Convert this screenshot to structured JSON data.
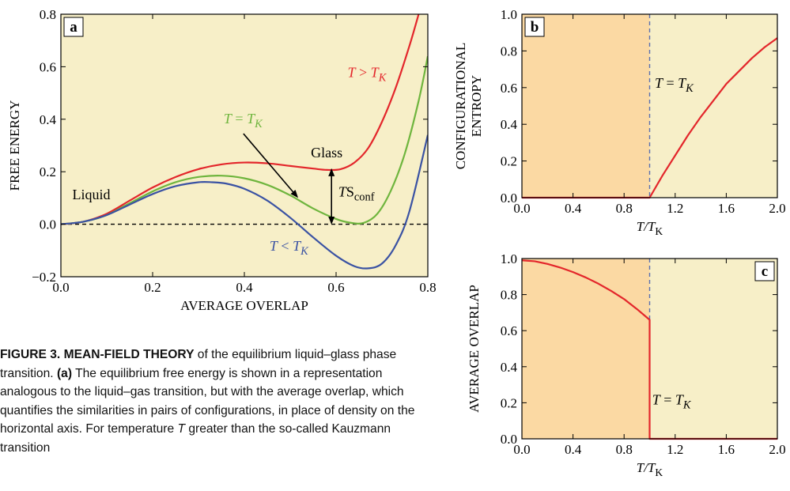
{
  "colors": {
    "panel_bg": "#f7efc8",
    "glass_region": "#fbd9a3",
    "red": "#e3262b",
    "green": "#6fb53e",
    "blue": "#3a52a3",
    "dashed": "#5a6fb0"
  },
  "caption": {
    "heading": "FIGURE 3. MEAN-FIELD THEORY",
    "text1": " of the equilibrium liquid–glass phase transition. ",
    "bold_a": "(a)",
    "text2": " The equilibrium free energy is shown in a representation analogous to the liquid–gas transition, but with the average overlap, which quantifies the similarities in pairs of configurations, in place of density on the horizontal axis. For temperature ",
    "T": "T",
    "text3": " greater than the so-called Kauzmann transition"
  },
  "chart_data": [
    {
      "type": "line",
      "panel": "a",
      "xlabel": "AVERAGE OVERLAP",
      "ylabel": "FREE ENERGY",
      "xlim": [
        0.0,
        0.8
      ],
      "ylim": [
        -0.2,
        0.8
      ],
      "xticks": [
        "0.0",
        "0.2",
        "0.4",
        "0.6",
        "0.8"
      ],
      "yticks": [
        "−0.2",
        "0.0",
        "0.2",
        "0.4",
        "0.6",
        "0.8"
      ],
      "series": [
        {
          "name": "T > T_K",
          "color": "#e3262b",
          "x": [
            0.0,
            0.05,
            0.1,
            0.15,
            0.2,
            0.25,
            0.3,
            0.35,
            0.4,
            0.45,
            0.5,
            0.55,
            0.58,
            0.61,
            0.64,
            0.67,
            0.7,
            0.73,
            0.76,
            0.78
          ],
          "y": [
            0.0,
            0.01,
            0.04,
            0.09,
            0.14,
            0.18,
            0.21,
            0.228,
            0.235,
            0.232,
            0.222,
            0.212,
            0.207,
            0.21,
            0.235,
            0.29,
            0.39,
            0.52,
            0.68,
            0.8
          ]
        },
        {
          "name": "T = T_K",
          "color": "#6fb53e",
          "x": [
            0.0,
            0.05,
            0.1,
            0.15,
            0.2,
            0.25,
            0.3,
            0.35,
            0.4,
            0.45,
            0.5,
            0.55,
            0.6,
            0.63,
            0.66,
            0.69,
            0.72,
            0.75,
            0.78,
            0.8
          ],
          "y": [
            0.0,
            0.01,
            0.035,
            0.08,
            0.125,
            0.16,
            0.18,
            0.185,
            0.175,
            0.15,
            0.11,
            0.06,
            0.02,
            0.006,
            0.005,
            0.04,
            0.13,
            0.27,
            0.47,
            0.64
          ]
        },
        {
          "name": "T < T_K",
          "color": "#3a52a3",
          "x": [
            0.0,
            0.05,
            0.1,
            0.15,
            0.2,
            0.25,
            0.3,
            0.33,
            0.36,
            0.4,
            0.45,
            0.5,
            0.55,
            0.6,
            0.64,
            0.67,
            0.7,
            0.73,
            0.76,
            0.8
          ],
          "y": [
            0.0,
            0.01,
            0.035,
            0.075,
            0.115,
            0.145,
            0.16,
            0.16,
            0.155,
            0.135,
            0.09,
            0.025,
            -0.05,
            -0.12,
            -0.16,
            -0.168,
            -0.15,
            -0.08,
            0.05,
            0.34
          ]
        }
      ],
      "baseline_y": 0.0,
      "annotations": [
        {
          "text": "T > T",
          "sub": "K",
          "color": "#e3262b",
          "x": 0.625,
          "y": 0.56
        },
        {
          "text": "T = T",
          "sub": "K",
          "color": "#6fb53e",
          "x": 0.355,
          "y": 0.385
        },
        {
          "text": "T < T",
          "sub": "K",
          "color": "#3a52a3",
          "x": 0.455,
          "y": -0.1
        },
        {
          "text": "Liquid",
          "color": "#000000",
          "x": 0.025,
          "y": 0.095
        },
        {
          "text": "Glass",
          "color": "#000000",
          "x": 0.545,
          "y": 0.255
        },
        {
          "text": "TS",
          "sub": "conf",
          "color": "#000000",
          "x": 0.605,
          "y": 0.105
        }
      ],
      "arrow": {
        "from": [
          0.398,
          0.345
        ],
        "to": [
          0.515,
          0.105
        ]
      },
      "double_arrow": {
        "x": 0.59,
        "y_top": 0.207,
        "y_bottom": 0.005
      },
      "panel_label": "a"
    },
    {
      "type": "line",
      "panel": "b",
      "xlabel": "T/T",
      "xlabel_sub": "K",
      "ylabel": [
        "CONFIGURATIONAL",
        "ENTROPY"
      ],
      "xlim": [
        0.0,
        2.0
      ],
      "ylim": [
        0.0,
        1.0
      ],
      "xticks": [
        "0.0",
        "0.4",
        "0.8",
        "1.2",
        "1.6",
        "2.0"
      ],
      "yticks": [
        "0.0",
        "0.2",
        "0.4",
        "0.6",
        "0.8",
        "1.0"
      ],
      "shaded_region": [
        0.0,
        1.0
      ],
      "transition_x": 1.0,
      "series": [
        {
          "color": "#e3262b",
          "x": [
            0.0,
            1.0,
            1.0,
            1.1,
            1.2,
            1.3,
            1.4,
            1.5,
            1.6,
            1.7,
            1.8,
            1.9,
            2.0
          ],
          "y": [
            0.0,
            0.0,
            0.0,
            0.12,
            0.23,
            0.34,
            0.44,
            0.53,
            0.62,
            0.69,
            0.76,
            0.82,
            0.87
          ]
        }
      ],
      "annotation": {
        "text": "T = T",
        "sub": "K",
        "x": 1.04,
        "y": 0.6
      },
      "panel_label": "b"
    },
    {
      "type": "line",
      "panel": "c",
      "xlabel": "T/T",
      "xlabel_sub": "K",
      "ylabel": "AVERAGE OVERLAP",
      "xlim": [
        0.0,
        2.0
      ],
      "ylim": [
        0.0,
        1.0
      ],
      "xticks": [
        "0.0",
        "0.4",
        "0.8",
        "1.2",
        "1.6",
        "2.0"
      ],
      "yticks": [
        "0.0",
        "0.2",
        "0.4",
        "0.6",
        "0.8",
        "1.0"
      ],
      "shaded_region": [
        0.0,
        1.0
      ],
      "transition_x": 1.0,
      "series": [
        {
          "color": "#e3262b",
          "x": [
            0.0,
            0.1,
            0.2,
            0.3,
            0.4,
            0.5,
            0.6,
            0.7,
            0.8,
            0.9,
            1.0,
            1.0,
            2.0
          ],
          "y": [
            0.99,
            0.985,
            0.97,
            0.95,
            0.925,
            0.895,
            0.86,
            0.82,
            0.775,
            0.72,
            0.66,
            0.0,
            0.0
          ]
        }
      ],
      "annotation": {
        "text": "T = T",
        "sub": "K",
        "x": 1.02,
        "y": 0.19
      },
      "panel_label": "c"
    }
  ]
}
